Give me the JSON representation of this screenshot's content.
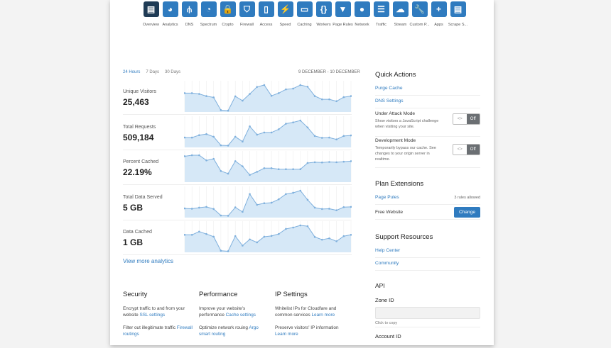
{
  "nav": [
    {
      "label": "Overview",
      "icon": "clipboard-icon",
      "g": "▤",
      "active": true
    },
    {
      "label": "Analytics",
      "icon": "pie-chart-icon",
      "g": "◕"
    },
    {
      "label": "DNS",
      "icon": "network-tree-icon",
      "g": "⫛"
    },
    {
      "label": "Spectrum",
      "icon": "spectrum-icon",
      "g": "◔"
    },
    {
      "label": "Crypto",
      "icon": "lock-icon",
      "g": "🔒"
    },
    {
      "label": "Firewall",
      "icon": "shield-icon",
      "g": "⛉"
    },
    {
      "label": "Access",
      "icon": "door-icon",
      "g": "▯"
    },
    {
      "label": "Speed",
      "icon": "lightning-icon",
      "g": "⚡"
    },
    {
      "label": "Caching",
      "icon": "drive-icon",
      "g": "▭"
    },
    {
      "label": "Workers",
      "icon": "code-brackets-icon",
      "g": "{}"
    },
    {
      "label": "Page Rules",
      "icon": "filter-icon",
      "g": "▼"
    },
    {
      "label": "Network",
      "icon": "location-pin-icon",
      "g": "●"
    },
    {
      "label": "Traffic",
      "icon": "list-icon",
      "g": "☰"
    },
    {
      "label": "Stream",
      "icon": "cloud-upload-icon",
      "g": "☁"
    },
    {
      "label": "Custom P...",
      "icon": "wrench-icon",
      "g": "🔧"
    },
    {
      "label": "Apps",
      "icon": "plus-icon",
      "g": "+"
    },
    {
      "label": "Scrape S...",
      "icon": "document-icon",
      "g": "▤"
    }
  ],
  "tabs": [
    "24 Hours",
    "7 Days",
    "30 Days"
  ],
  "date_range": "9 DECEMBER - 10 DECEMBER",
  "metrics": [
    {
      "label": "Unique Visitors",
      "value": "25,463",
      "series": [
        70,
        70,
        67,
        59,
        54,
        7,
        5,
        58,
        42,
        67,
        93,
        100,
        60,
        70,
        84,
        87,
        100,
        94,
        59,
        47,
        47,
        40,
        55,
        59
      ]
    },
    {
      "label": "Total Requests",
      "value": "509,184",
      "series": [
        37,
        37,
        46,
        50,
        40,
        8,
        7,
        40,
        22,
        79,
        48,
        56,
        56,
        68,
        89,
        94,
        101,
        75,
        43,
        36,
        37,
        30,
        43,
        45
      ]
    },
    {
      "label": "Percent Cached",
      "value": "22.19%",
      "series": [
        100,
        104,
        104,
        84,
        90,
        43,
        33,
        81,
        61,
        28,
        40,
        54,
        54,
        50,
        50,
        50,
        50,
        74,
        77,
        76,
        78,
        77,
        79,
        81
      ]
    },
    {
      "label": "Total Data Served",
      "value": "5 GB",
      "series": [
        35,
        34,
        38,
        41,
        33,
        8,
        7,
        39,
        22,
        90,
        49,
        55,
        57,
        70,
        90,
        95,
        103,
        68,
        38,
        33,
        34,
        28,
        40,
        41
      ]
    },
    {
      "label": "Data Cached",
      "value": "1 GB",
      "series": [
        65,
        65,
        77,
        68,
        58,
        6,
        4,
        60,
        25,
        48,
        37,
        58,
        61,
        68,
        87,
        92,
        100,
        97,
        57,
        47,
        52,
        41,
        60,
        65
      ]
    }
  ],
  "view_more": "View more analytics",
  "footer": [
    {
      "title": "Security",
      "items": [
        {
          "text": "Encrypt traffic to and from your website",
          "link": "SSL settings"
        },
        {
          "text": "Filter out illegitimate traffic",
          "link": "Firewall routings"
        }
      ]
    },
    {
      "title": "Performance",
      "items": [
        {
          "text": "Improve your website's performance",
          "link": "Cache settings"
        },
        {
          "text": "Optimize network rouing",
          "link": "Argo smart routing"
        }
      ]
    },
    {
      "title": "IP Settings",
      "items": [
        {
          "text": "Whitelist IPs for Cloudfare and common services",
          "link": "Learn more"
        },
        {
          "text": "Preserve visitors' IP information",
          "link": "Learn more"
        }
      ]
    }
  ],
  "side": {
    "quick_actions": "Quick Actions",
    "purge": "Purge Cache",
    "dns": "DNS Settings",
    "attack_title": "Under Attack Mode",
    "attack_desc": "Show visitors a JavaScript challenge when visiting your site.",
    "dev_title": "Development Mode",
    "dev_desc": "Temporarily bypass our cache. See changes to your origin server in realtime.",
    "toggle_left": "<>",
    "toggle_off": "Off",
    "plan": "Plan Extensions",
    "page_rules": "Page Pules",
    "rules_allowed": "3 rules allowed",
    "free": "Free Website",
    "change": "Change",
    "support": "Support Resources",
    "help": "Help Center",
    "community": "Community",
    "api": "API",
    "zone_id": "Zone ID",
    "click_copy": "Click to copy",
    "account_id": "Account ID"
  },
  "colors": {
    "accent": "#2f7bbf",
    "active_nav": "#1f3b55",
    "chart_fill": "#d6e8f7",
    "chart_line": "#7fb0dd"
  }
}
